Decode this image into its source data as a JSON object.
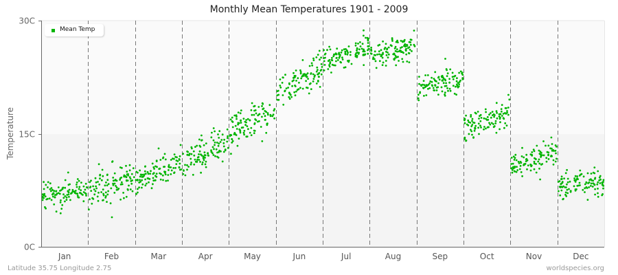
{
  "title": "Monthly Mean Temperatures 1901 - 2009",
  "footer": {
    "location": "Latitude 35.75 Longitude 2.75",
    "source": "worldspecies.org"
  },
  "legend": {
    "label": "Mean Temp",
    "color": "#00b400"
  },
  "chart_data": {
    "type": "scatter",
    "title": "Monthly Mean Temperatures 1901 - 2009",
    "xlabel": "",
    "ylabel": "Temperature",
    "ylim": [
      0,
      30
    ],
    "yticks": [
      "0C",
      "15C",
      "30C"
    ],
    "ytick_values": [
      0,
      15,
      30
    ],
    "categories": [
      "Jan",
      "Feb",
      "Mar",
      "Apr",
      "May",
      "Jun",
      "Jul",
      "Aug",
      "Sep",
      "Oct",
      "Nov",
      "Dec"
    ],
    "points_per_month": 109,
    "series": [
      {
        "name": "Mean Temp",
        "color": "#00b400",
        "monthly_stats": [
          {
            "month": "Jan",
            "mean": 7.0,
            "start": 6.5,
            "end": 7.8,
            "spread": 1.3,
            "min": 3.7,
            "max": 10.0
          },
          {
            "month": "Feb",
            "mean": 8.3,
            "start": 7.3,
            "end": 9.3,
            "spread": 1.7,
            "min": 3.1,
            "max": 13.0
          },
          {
            "month": "Mar",
            "mean": 10.0,
            "start": 8.8,
            "end": 11.3,
            "spread": 1.3,
            "min": 7.0,
            "max": 13.5
          },
          {
            "month": "Apr",
            "mean": 12.5,
            "start": 11.0,
            "end": 13.8,
            "spread": 1.4,
            "min": 9.0,
            "max": 16.0
          },
          {
            "month": "May",
            "mean": 16.5,
            "start": 15.3,
            "end": 18.0,
            "spread": 1.5,
            "min": 12.0,
            "max": 21.0
          },
          {
            "month": "Jun",
            "mean": 21.7,
            "start": 20.3,
            "end": 23.5,
            "spread": 1.5,
            "min": 18.5,
            "max": 26.0
          },
          {
            "month": "Jul",
            "mean": 25.5,
            "start": 24.3,
            "end": 26.5,
            "spread": 1.2,
            "min": 22.0,
            "max": 30.0
          },
          {
            "month": "Aug",
            "mean": 25.7,
            "start": 25.0,
            "end": 26.5,
            "spread": 1.1,
            "min": 22.5,
            "max": 29.0
          },
          {
            "month": "Sep",
            "mean": 21.7,
            "start": 21.0,
            "end": 22.5,
            "spread": 1.3,
            "min": 18.5,
            "max": 26.0
          },
          {
            "month": "Oct",
            "mean": 16.5,
            "start": 15.8,
            "end": 18.0,
            "spread": 1.3,
            "min": 12.5,
            "max": 21.0
          },
          {
            "month": "Nov",
            "mean": 11.5,
            "start": 10.8,
            "end": 12.5,
            "spread": 1.2,
            "min": 8.5,
            "max": 14.5
          },
          {
            "month": "Dec",
            "mean": 8.2,
            "start": 7.8,
            "end": 8.8,
            "spread": 1.2,
            "min": 4.5,
            "max": 12.5
          }
        ]
      }
    ],
    "grid": {
      "vertical_dashed_month_separators": true,
      "band_split_at": 15
    },
    "legend_position": "top-left"
  }
}
